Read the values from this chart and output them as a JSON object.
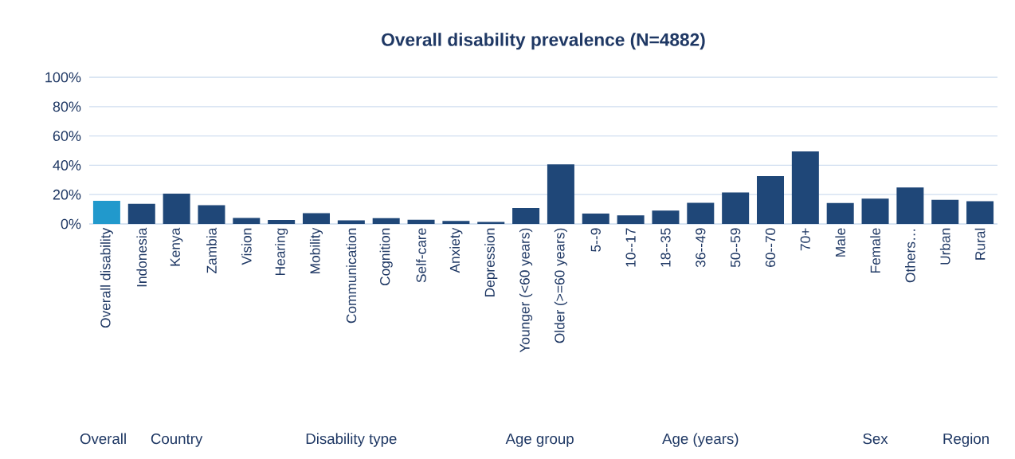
{
  "chart_data": {
    "type": "bar",
    "title": "Overall disability prevalence (N=4882)",
    "categories": [
      "Overall disability",
      "Indonesia",
      "Kenya",
      "Zambia",
      "Vision",
      "Hearing",
      "Mobility",
      "Communication",
      "Cognition",
      "Self-care",
      "Anxiety",
      "Depression",
      "Younger (<60 years)",
      "Older (>=60 years)",
      "5--9",
      "10--17",
      "18--35",
      "36--49",
      "50--59",
      "60--70",
      "70+",
      "Male",
      "Female",
      "Others…",
      "Urban",
      "Rural"
    ],
    "values": [
      15.7,
      13.7,
      20.7,
      12.8,
      4.1,
      2.7,
      7.3,
      2.5,
      3.9,
      2.9,
      2.1,
      1.4,
      10.9,
      40.6,
      7.1,
      5.8,
      9.1,
      14.4,
      21.5,
      32.6,
      49.4,
      14.2,
      17.3,
      24.8,
      16.4,
      15.5
    ],
    "colors": [
      "#2199cc",
      "#1f4778",
      "#1f4778",
      "#1f4778",
      "#1f4778",
      "#1f4778",
      "#1f4778",
      "#1f4778",
      "#1f4778",
      "#1f4778",
      "#1f4778",
      "#1f4778",
      "#1f4778",
      "#1f4778",
      "#1f4778",
      "#1f4778",
      "#1f4778",
      "#1f4778",
      "#1f4778",
      "#1f4778",
      "#1f4778",
      "#1f4778",
      "#1f4778",
      "#1f4778",
      "#1f4778",
      "#1f4778"
    ],
    "ylim": [
      0,
      100
    ],
    "yticks": [
      {
        "value": 0,
        "label": "0%"
      },
      {
        "value": 20,
        "label": "20%"
      },
      {
        "value": 40,
        "label": "40%"
      },
      {
        "value": 60,
        "label": "60%"
      },
      {
        "value": 80,
        "label": "80%"
      },
      {
        "value": 100,
        "label": "100%"
      }
    ],
    "grid": "y",
    "annotations": [
      "Overall",
      "Country",
      "Disability type",
      "Age group",
      "Age (years)",
      "Sex",
      "Region"
    ]
  }
}
